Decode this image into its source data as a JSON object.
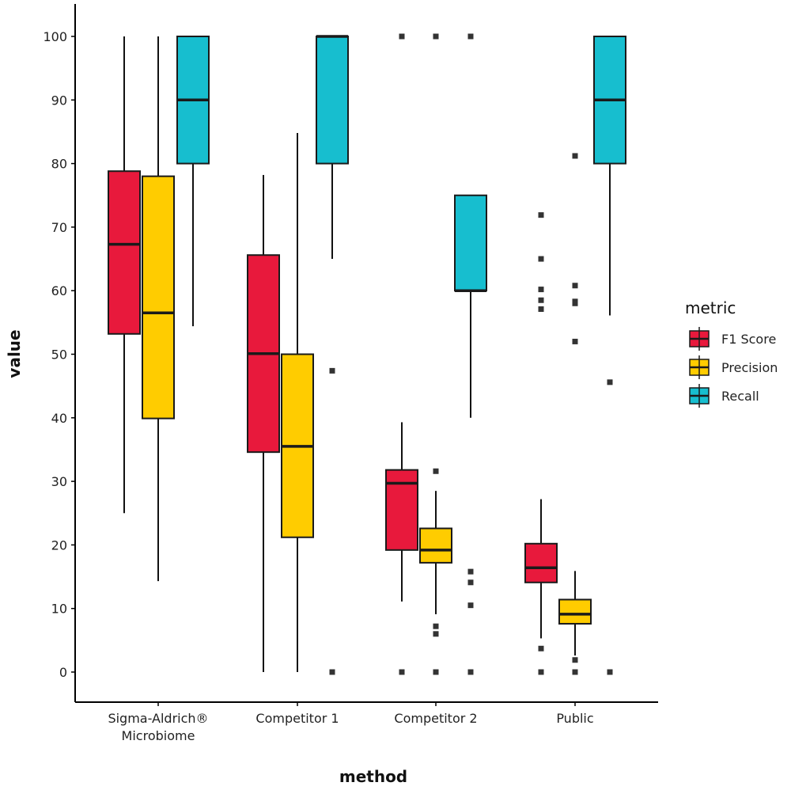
{
  "chart_data": {
    "type": "boxplot",
    "xlabel": "method",
    "ylabel": "value",
    "ylim": [
      -4.7,
      105
    ],
    "yticks": [
      0,
      10,
      20,
      30,
      40,
      50,
      60,
      70,
      80,
      90,
      100
    ],
    "grid": false,
    "categories": [
      "Sigma-Aldrich® Microbiome",
      "Competitor 1",
      "Competitor 2",
      "Public"
    ],
    "category_lines": [
      [
        "Sigma-Aldrich®",
        "Microbiome"
      ],
      [
        "Competitor 1"
      ],
      [
        "Competitor 2"
      ],
      [
        "Public"
      ]
    ],
    "legend": {
      "title": "metric",
      "position": "right"
    },
    "series": [
      {
        "name": "F1 Score",
        "color": "#E8193C",
        "boxes": [
          {
            "low": 25,
            "q1": 53.2,
            "median": 67.3,
            "q3": 78.8,
            "high": 100,
            "outliers": []
          },
          {
            "low": 0,
            "q1": 34.6,
            "median": 50.1,
            "q3": 65.6,
            "high": 78.2,
            "outliers": []
          },
          {
            "low": 11.1,
            "q1": 19.2,
            "median": 29.7,
            "q3": 31.8,
            "high": 39.3,
            "outliers": [
              100,
              0
            ]
          },
          {
            "low": 5.3,
            "q1": 14.1,
            "median": 16.4,
            "q3": 20.2,
            "high": 27.2,
            "outliers": [
              71.9,
              65.0,
              60.2,
              58.5,
              57.1,
              3.7,
              0
            ]
          }
        ]
      },
      {
        "name": "Precision",
        "color": "#FFCC00",
        "boxes": [
          {
            "low": 14.3,
            "q1": 39.9,
            "median": 56.5,
            "q3": 78.0,
            "high": 100,
            "outliers": []
          },
          {
            "low": 0,
            "q1": 21.2,
            "median": 35.5,
            "q3": 50.0,
            "high": 84.8,
            "outliers": []
          },
          {
            "low": 9.1,
            "q1": 17.2,
            "median": 19.2,
            "q3": 22.6,
            "high": 28.5,
            "outliers": [
              100,
              31.6,
              7.2,
              6.0,
              0
            ]
          },
          {
            "low": 2.6,
            "q1": 7.6,
            "median": 9.1,
            "q3": 11.4,
            "high": 15.9,
            "outliers": [
              81.2,
              60.8,
              58.3,
              58.0,
              52.0,
              1.9,
              0
            ]
          }
        ]
      },
      {
        "name": "Recall",
        "color": "#17BECF",
        "boxes": [
          {
            "low": 54.4,
            "q1": 80,
            "median": 90,
            "q3": 100,
            "high": 100,
            "outliers": []
          },
          {
            "low": 65,
            "q1": 80,
            "median": 100,
            "q3": 100,
            "high": 100,
            "outliers": [
              47.4,
              0
            ]
          },
          {
            "low": 40,
            "q1": 60,
            "median": 60,
            "q3": 75,
            "high": 75,
            "outliers": [
              100,
              15.8,
              14.1,
              10.5,
              0
            ]
          },
          {
            "low": 56.1,
            "q1": 80,
            "median": 90,
            "q3": 100,
            "high": 100,
            "outliers": [
              45.6,
              0
            ]
          }
        ]
      }
    ]
  }
}
